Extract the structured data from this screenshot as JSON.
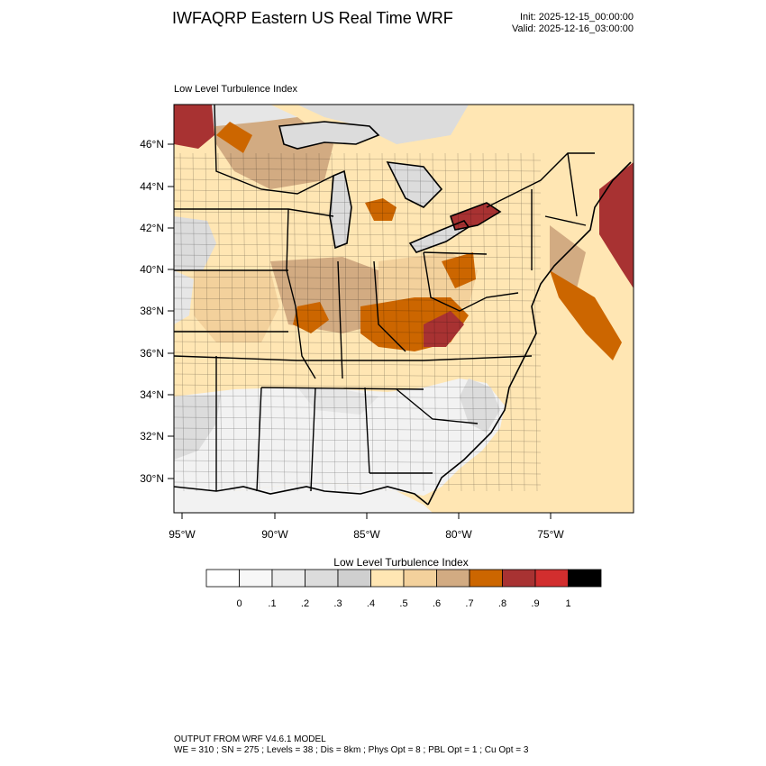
{
  "header": {
    "title": "IWFAQRP Eastern US Real Time WRF",
    "init": "Init: 2025-12-15_00:00:00",
    "valid": "Valid: 2025-12-16_03:00:00"
  },
  "map": {
    "subtitle": "Low Level Turbulence Index",
    "lat_labels": [
      "46°N",
      "44°N",
      "42°N",
      "40°N",
      "38°N",
      "36°N",
      "34°N",
      "32°N",
      "30°N"
    ],
    "lon_labels": [
      "95°W",
      "90°W",
      "85°W",
      "80°W",
      "75°W"
    ]
  },
  "colorbar": {
    "title": "Low Level Turbulence Index",
    "colors": [
      "#ffffff",
      "#f7f7f7",
      "#ececec",
      "#dcdcdc",
      "#cfcfcf",
      "#ffe6b3",
      "#f3d19c",
      "#d2ab82",
      "#cc6600",
      "#a83232",
      "#d22e2e",
      "#000000"
    ],
    "labels": [
      "0",
      ".1",
      ".2",
      ".3",
      ".4",
      ".5",
      ".6",
      ".7",
      ".8",
      ".9",
      "1"
    ]
  },
  "footer": {
    "line1": "OUTPUT FROM WRF V4.6.1 MODEL",
    "line2": "WE = 310 ; SN = 275 ; Levels = 38 ; Dis = 8km ; Phys Opt = 8 ; PBL Opt = 1 ; Cu Opt = 3"
  }
}
